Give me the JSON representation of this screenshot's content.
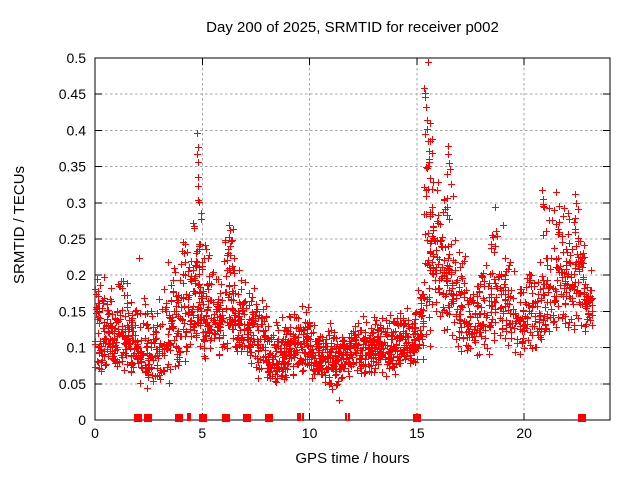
{
  "chart_data": {
    "type": "scatter",
    "title": "Day 200 of 2025, SRMTID for receiver p002",
    "xlabel": "GPS time / hours",
    "ylabel": "SRMTID / TECUs",
    "xlim": [
      0,
      24
    ],
    "ylim": [
      0,
      0.5
    ],
    "xticks": [
      0,
      5,
      10,
      15,
      20
    ],
    "xtick_labels": [
      "0",
      "5",
      "10",
      "15",
      "20"
    ],
    "yticks": [
      0,
      0.05,
      0.1,
      0.15,
      0.2,
      0.25,
      0.3,
      0.35,
      0.4,
      0.45,
      0.5
    ],
    "ytick_labels": [
      "0",
      "0.05",
      "0.1",
      "0.15",
      "0.2",
      "0.25",
      "0.3",
      "0.35",
      "0.4",
      "0.45",
      "0.5"
    ],
    "grid": true,
    "legend": "none",
    "marker": "plus",
    "marker_color": "#ff0000",
    "grid_color": "#a6a6a6",
    "axis_color": "#000000",
    "background_color": "#ffffff",
    "seed": 20250720,
    "envelope_segments": [
      [
        0.0,
        0.5,
        58,
        0.055,
        0.1,
        0.205
      ],
      [
        0.5,
        1.0,
        56,
        0.06,
        0.1,
        0.185
      ],
      [
        1.0,
        1.5,
        52,
        0.055,
        0.105,
        0.21
      ],
      [
        1.5,
        2.0,
        52,
        0.05,
        0.095,
        0.185
      ],
      [
        2.0,
        2.5,
        46,
        0.04,
        0.09,
        0.175
      ],
      [
        2.5,
        3.0,
        38,
        0.045,
        0.08,
        0.155
      ],
      [
        3.0,
        3.5,
        40,
        0.05,
        0.09,
        0.19
      ],
      [
        3.5,
        4.0,
        46,
        0.06,
        0.11,
        0.235
      ],
      [
        4.0,
        4.5,
        50,
        0.07,
        0.13,
        0.26
      ],
      [
        4.5,
        5.0,
        60,
        0.085,
        0.16,
        0.33
      ],
      [
        5.0,
        5.5,
        55,
        0.08,
        0.14,
        0.27
      ],
      [
        5.5,
        6.0,
        50,
        0.08,
        0.13,
        0.225
      ],
      [
        6.0,
        6.5,
        56,
        0.09,
        0.15,
        0.285
      ],
      [
        6.5,
        7.0,
        50,
        0.08,
        0.13,
        0.22
      ],
      [
        7.0,
        7.5,
        48,
        0.06,
        0.11,
        0.2
      ],
      [
        7.5,
        8.0,
        48,
        0.05,
        0.1,
        0.175
      ],
      [
        8.0,
        8.5,
        50,
        0.04,
        0.08,
        0.14
      ],
      [
        8.5,
        9.0,
        50,
        0.05,
        0.09,
        0.15
      ],
      [
        9.0,
        9.5,
        50,
        0.055,
        0.095,
        0.16
      ],
      [
        9.5,
        10.0,
        50,
        0.06,
        0.1,
        0.165
      ],
      [
        10.0,
        10.5,
        50,
        0.05,
        0.085,
        0.14
      ],
      [
        10.5,
        11.0,
        50,
        0.04,
        0.08,
        0.135
      ],
      [
        11.0,
        11.5,
        50,
        0.04,
        0.075,
        0.125
      ],
      [
        11.5,
        12.0,
        50,
        0.05,
        0.085,
        0.14
      ],
      [
        12.0,
        12.5,
        50,
        0.06,
        0.09,
        0.145
      ],
      [
        12.5,
        13.0,
        50,
        0.06,
        0.095,
        0.15
      ],
      [
        13.0,
        13.5,
        50,
        0.065,
        0.1,
        0.155
      ],
      [
        13.5,
        14.0,
        50,
        0.06,
        0.095,
        0.15
      ],
      [
        14.0,
        14.5,
        50,
        0.065,
        0.1,
        0.155
      ],
      [
        14.5,
        15.0,
        50,
        0.07,
        0.105,
        0.165
      ],
      [
        15.0,
        15.3,
        28,
        0.08,
        0.12,
        0.185
      ],
      [
        15.3,
        15.8,
        60,
        0.1,
        0.22,
        0.44
      ],
      [
        15.8,
        16.3,
        52,
        0.12,
        0.2,
        0.345
      ],
      [
        16.3,
        16.8,
        50,
        0.11,
        0.18,
        0.375
      ],
      [
        16.8,
        17.3,
        45,
        0.09,
        0.14,
        0.245
      ],
      [
        17.3,
        17.8,
        42,
        0.07,
        0.12,
        0.2
      ],
      [
        17.8,
        18.4,
        46,
        0.08,
        0.13,
        0.225
      ],
      [
        18.4,
        19.0,
        48,
        0.1,
        0.16,
        0.295
      ],
      [
        19.0,
        19.6,
        46,
        0.09,
        0.14,
        0.26
      ],
      [
        19.6,
        20.2,
        45,
        0.08,
        0.13,
        0.205
      ],
      [
        20.2,
        20.8,
        45,
        0.09,
        0.135,
        0.225
      ],
      [
        20.8,
        21.1,
        26,
        0.1,
        0.15,
        0.32
      ],
      [
        21.1,
        21.7,
        46,
        0.11,
        0.16,
        0.315
      ],
      [
        21.7,
        22.3,
        56,
        0.12,
        0.18,
        0.315
      ],
      [
        22.3,
        22.8,
        52,
        0.12,
        0.19,
        0.3
      ],
      [
        22.8,
        23.2,
        36,
        0.11,
        0.15,
        0.225
      ]
    ],
    "highlight_points": [
      [
        2.05,
        0.224
      ],
      [
        3.4,
        0.218
      ],
      [
        4.57,
        0.272
      ],
      [
        4.6,
        0.265
      ],
      [
        4.76,
        0.397
      ],
      [
        4.78,
        0.377
      ],
      [
        4.77,
        0.368
      ],
      [
        4.79,
        0.356
      ],
      [
        4.8,
        0.335
      ],
      [
        4.82,
        0.323
      ],
      [
        4.84,
        0.301
      ],
      [
        6.25,
        0.27
      ],
      [
        6.28,
        0.262
      ],
      [
        11.35,
        0.027
      ],
      [
        15.52,
        0.495
      ],
      [
        15.35,
        0.458
      ],
      [
        15.37,
        0.452
      ],
      [
        15.4,
        0.446
      ],
      [
        15.43,
        0.432
      ],
      [
        15.45,
        0.415
      ],
      [
        15.46,
        0.402
      ],
      [
        15.5,
        0.386
      ],
      [
        15.55,
        0.372
      ],
      [
        15.57,
        0.36
      ],
      [
        16.42,
        0.34
      ],
      [
        16.45,
        0.378
      ],
      [
        16.47,
        0.368
      ],
      [
        16.5,
        0.355
      ],
      [
        16.53,
        0.346
      ],
      [
        18.62,
        0.294
      ],
      [
        19.02,
        0.27
      ],
      [
        20.84,
        0.318
      ],
      [
        20.86,
        0.305
      ],
      [
        20.88,
        0.296
      ],
      [
        21.5,
        0.315
      ],
      [
        22.38,
        0.312
      ],
      [
        22.42,
        0.3
      ]
    ],
    "zero_flag_squares_t": [
      2.0,
      2.45,
      3.9,
      5.05,
      6.1,
      7.1,
      8.1,
      15.0,
      22.7
    ],
    "zero_flag_ticks_t": [
      4.34,
      4.42,
      9.48,
      9.57,
      9.68,
      11.72,
      11.83
    ]
  }
}
